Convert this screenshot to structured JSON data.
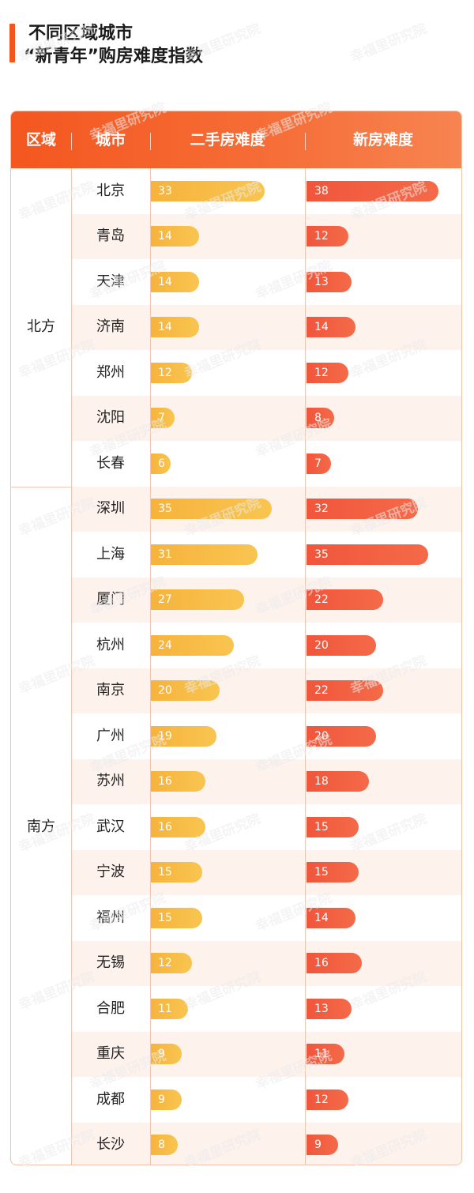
{
  "title": {
    "line1": "不同区域城市",
    "line2": "“新青年”购房难度指数"
  },
  "watermark": "幸福里研究院",
  "colors": {
    "accent": "#f2561f",
    "used_bar": "#f6b33c",
    "new_bar": "#f0563c"
  },
  "chart_data": {
    "type": "bar",
    "title": "不同区域城市 “新青年”购房难度指数",
    "columns": {
      "region": "区域",
      "city": "城市",
      "used": "二手房难度",
      "new": "新房难度"
    },
    "regions": [
      {
        "name": "北方",
        "cities": [
          {
            "name": "北京",
            "used": 33,
            "new": 38
          },
          {
            "name": "青岛",
            "used": 14,
            "new": 12
          },
          {
            "name": "天津",
            "used": 14,
            "new": 13
          },
          {
            "name": "济南",
            "used": 14,
            "new": 14
          },
          {
            "name": "郑州",
            "used": 12,
            "new": 12
          },
          {
            "name": "沈阳",
            "used": 7,
            "new": 8
          },
          {
            "name": "长春",
            "used": 6,
            "new": 7
          }
        ]
      },
      {
        "name": "南方",
        "cities": [
          {
            "name": "深圳",
            "used": 35,
            "new": 32
          },
          {
            "name": "上海",
            "used": 31,
            "new": 35
          },
          {
            "name": "厦门",
            "used": 27,
            "new": 22
          },
          {
            "name": "杭州",
            "used": 24,
            "new": 20
          },
          {
            "name": "南京",
            "used": 20,
            "new": 22
          },
          {
            "name": "广州",
            "used": 19,
            "new": 20
          },
          {
            "name": "苏州",
            "used": 16,
            "new": 18
          },
          {
            "name": "武汉",
            "used": 16,
            "new": 15
          },
          {
            "name": "宁波",
            "used": 15,
            "new": 15
          },
          {
            "name": "福州",
            "used": 15,
            "new": 14
          },
          {
            "name": "无锡",
            "used": 12,
            "new": 16
          },
          {
            "name": "合肥",
            "used": 11,
            "new": 13
          },
          {
            "name": "重庆",
            "used": 9,
            "new": 11
          },
          {
            "name": "成都",
            "used": 9,
            "new": 12
          },
          {
            "name": "长沙",
            "used": 8,
            "new": 9
          }
        ]
      }
    ]
  }
}
